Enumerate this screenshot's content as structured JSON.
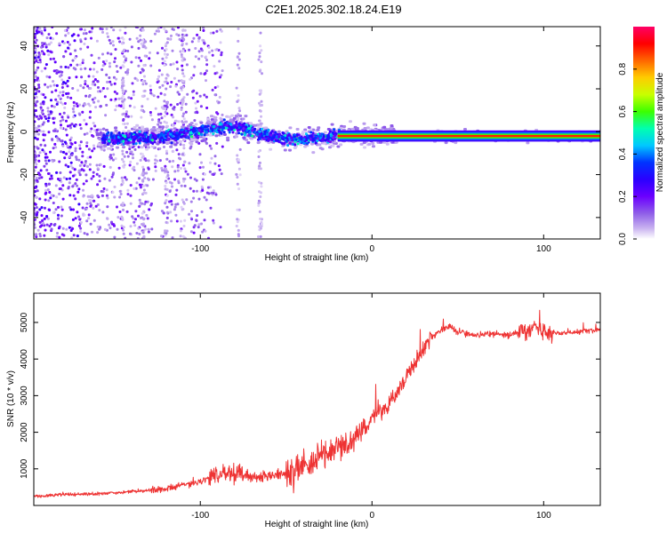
{
  "title": "C2E1.2025.302.18.24.E19",
  "chart_data": [
    {
      "type": "heatmap",
      "xlabel": "Height of straight line (km)",
      "ylabel": "Frequency (Hz)",
      "xlim": [
        -197,
        133
      ],
      "ylim": [
        -50,
        49
      ],
      "xticks": [
        -100,
        0,
        100
      ],
      "yticks": [
        -40,
        -20,
        0,
        20,
        40
      ],
      "colorbar": {
        "label": "Normalized spectral amplitude",
        "range": [
          0,
          1
        ],
        "ticks": [
          0.0,
          0.2,
          0.4,
          0.6,
          0.8
        ],
        "colors": [
          "#ffffff",
          "#c9b3f0",
          "#8f5fe8",
          "#6b00ff",
          "#2b00ff",
          "#0033ff",
          "#00c8ff",
          "#00ffb0",
          "#3cff00",
          "#c8ff00",
          "#ffcc00",
          "#ff6600",
          "#ff0000",
          "#ff0066"
        ]
      },
      "ridge": [
        {
          "x": -155,
          "f": -3.5
        },
        {
          "x": -130,
          "f": -3.0
        },
        {
          "x": -110,
          "f": -1.0
        },
        {
          "x": -90,
          "f": 2.0
        },
        {
          "x": -80,
          "f": 2.5
        },
        {
          "x": -70,
          "f": 0.0
        },
        {
          "x": -55,
          "f": -3.0
        },
        {
          "x": -40,
          "f": -3.5
        },
        {
          "x": -30,
          "f": -3.0
        },
        {
          "x": -20,
          "f": -2.0
        },
        {
          "x": 0,
          "f": -1.5
        },
        {
          "x": 30,
          "f": -2.0
        },
        {
          "x": 133,
          "f": -2.0
        }
      ]
    },
    {
      "type": "line",
      "xlabel": "Height of straight line (km)",
      "ylabel": "SNR (10 * v/v)",
      "xlim": [
        -197,
        133
      ],
      "ylim": [
        0,
        5800
      ],
      "xticks": [
        -100,
        0,
        100
      ],
      "yticks": [
        1000,
        2000,
        3000,
        4000,
        5000
      ],
      "line_color": "#ee3333",
      "series": [
        {
          "name": "SNR",
          "points": [
            [
              -197,
              250
            ],
            [
              -180,
              300
            ],
            [
              -160,
              320
            ],
            [
              -140,
              380
            ],
            [
              -120,
              450
            ],
            [
              -110,
              550
            ],
            [
              -100,
              650
            ],
            [
              -90,
              850
            ],
            [
              -80,
              900
            ],
            [
              -70,
              800
            ],
            [
              -60,
              800
            ],
            [
              -50,
              850
            ],
            [
              -40,
              1050
            ],
            [
              -30,
              1350
            ],
            [
              -20,
              1600
            ],
            [
              -12,
              1750
            ],
            [
              -5,
              2100
            ],
            [
              0,
              2400
            ],
            [
              8,
              2700
            ],
            [
              15,
              3100
            ],
            [
              20,
              3500
            ],
            [
              25,
              3900
            ],
            [
              30,
              4300
            ],
            [
              35,
              4600
            ],
            [
              40,
              4800
            ],
            [
              45,
              4900
            ],
            [
              50,
              4750
            ],
            [
              60,
              4650
            ],
            [
              70,
              4700
            ],
            [
              80,
              4650
            ],
            [
              90,
              4800
            ],
            [
              95,
              4900
            ],
            [
              100,
              4750
            ],
            [
              110,
              4700
            ],
            [
              120,
              4750
            ],
            [
              133,
              4800
            ]
          ]
        }
      ]
    }
  ]
}
